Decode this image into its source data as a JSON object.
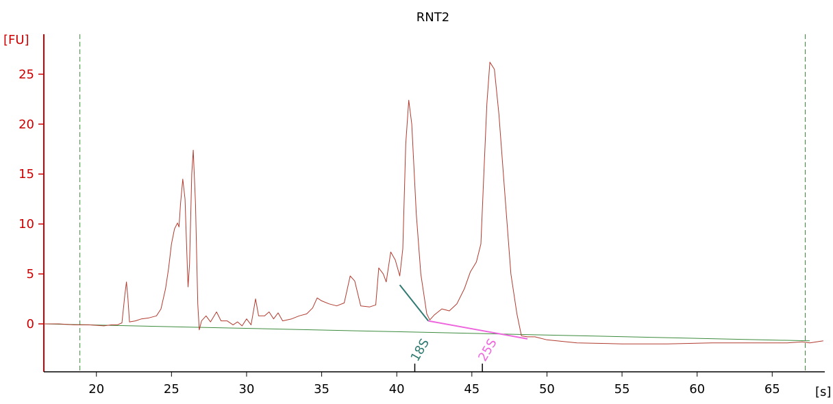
{
  "chart_data": {
    "type": "line",
    "title": "RNT2",
    "ylabel": "[FU]",
    "xlabel": "[s]",
    "xlim": [
      16.5,
      68.5
    ],
    "ylim": [
      -4.8,
      29
    ],
    "x_ticks": [
      20,
      25,
      30,
      35,
      40,
      45,
      50,
      55,
      60,
      65
    ],
    "y_ticks": [
      0,
      5,
      10,
      15,
      20,
      25
    ],
    "grid": false,
    "colors": {
      "trace": "#b03a2e",
      "baseline": "#3b8a3b",
      "axis": "#cc0000",
      "marker_18S": "#2f7a72",
      "marker_25S": "#ee66dd",
      "window": "#3b8a3b"
    },
    "window_lines": [
      18.9,
      67.2
    ],
    "baseline": [
      [
        16.5,
        0.0
      ],
      [
        67.5,
        -1.7
      ]
    ],
    "series": [
      {
        "values": [
          [
            16.5,
            0.0
          ],
          [
            17.5,
            0.0
          ],
          [
            18.5,
            -0.1
          ],
          [
            19.5,
            -0.1
          ],
          [
            20.5,
            -0.2
          ],
          [
            21.0,
            -0.1
          ],
          [
            21.4,
            -0.1
          ],
          [
            21.7,
            0.1
          ],
          [
            21.9,
            3.0
          ],
          [
            22.0,
            4.2
          ],
          [
            22.1,
            2.5
          ],
          [
            22.2,
            0.2
          ],
          [
            22.6,
            0.3
          ],
          [
            23.0,
            0.5
          ],
          [
            23.5,
            0.6
          ],
          [
            24.0,
            0.8
          ],
          [
            24.3,
            1.5
          ],
          [
            24.6,
            3.5
          ],
          [
            24.8,
            5.5
          ],
          [
            25.0,
            8.0
          ],
          [
            25.2,
            9.5
          ],
          [
            25.4,
            10.1
          ],
          [
            25.5,
            9.7
          ],
          [
            25.6,
            12.0
          ],
          [
            25.75,
            14.5
          ],
          [
            25.9,
            12.5
          ],
          [
            26.0,
            8.0
          ],
          [
            26.1,
            3.7
          ],
          [
            26.2,
            6.0
          ],
          [
            26.35,
            15.0
          ],
          [
            26.45,
            17.4
          ],
          [
            26.6,
            12.0
          ],
          [
            26.75,
            2.0
          ],
          [
            26.85,
            -0.6
          ],
          [
            27.0,
            0.3
          ],
          [
            27.3,
            0.8
          ],
          [
            27.6,
            0.2
          ],
          [
            28.0,
            1.2
          ],
          [
            28.3,
            0.3
          ],
          [
            28.7,
            0.3
          ],
          [
            29.1,
            -0.1
          ],
          [
            29.4,
            0.2
          ],
          [
            29.7,
            -0.2
          ],
          [
            30.0,
            0.5
          ],
          [
            30.3,
            -0.1
          ],
          [
            30.6,
            2.5
          ],
          [
            30.8,
            0.8
          ],
          [
            31.2,
            0.8
          ],
          [
            31.5,
            1.2
          ],
          [
            31.8,
            0.5
          ],
          [
            32.1,
            1.1
          ],
          [
            32.4,
            0.3
          ],
          [
            33.0,
            0.5
          ],
          [
            33.5,
            0.8
          ],
          [
            34.0,
            1.0
          ],
          [
            34.4,
            1.6
          ],
          [
            34.7,
            2.6
          ],
          [
            35.0,
            2.3
          ],
          [
            35.5,
            2.0
          ],
          [
            36.0,
            1.8
          ],
          [
            36.5,
            2.1
          ],
          [
            36.9,
            4.8
          ],
          [
            37.2,
            4.3
          ],
          [
            37.6,
            1.8
          ],
          [
            38.2,
            1.7
          ],
          [
            38.6,
            1.9
          ],
          [
            38.8,
            5.6
          ],
          [
            39.1,
            5.0
          ],
          [
            39.3,
            4.2
          ],
          [
            39.6,
            7.2
          ],
          [
            39.9,
            6.4
          ],
          [
            40.2,
            4.8
          ],
          [
            40.4,
            7.5
          ],
          [
            40.6,
            18.0
          ],
          [
            40.8,
            22.4
          ],
          [
            41.0,
            20.0
          ],
          [
            41.3,
            11.0
          ],
          [
            41.6,
            5.0
          ],
          [
            42.0,
            1.0
          ],
          [
            42.2,
            0.4
          ],
          [
            42.5,
            0.9
          ],
          [
            43.0,
            1.5
          ],
          [
            43.5,
            1.3
          ],
          [
            44.0,
            2.0
          ],
          [
            44.5,
            3.5
          ],
          [
            44.9,
            5.2
          ],
          [
            45.3,
            6.2
          ],
          [
            45.6,
            8.0
          ],
          [
            45.8,
            15.0
          ],
          [
            46.0,
            22.0
          ],
          [
            46.2,
            26.2
          ],
          [
            46.5,
            25.5
          ],
          [
            46.8,
            21.0
          ],
          [
            47.2,
            13.0
          ],
          [
            47.6,
            5.0
          ],
          [
            48.0,
            1.0
          ],
          [
            48.3,
            -1.2
          ],
          [
            48.7,
            -1.3
          ],
          [
            49.2,
            -1.3
          ],
          [
            50.0,
            -1.6
          ],
          [
            52.0,
            -1.9
          ],
          [
            55.0,
            -2.0
          ],
          [
            58.0,
            -2.0
          ],
          [
            61.0,
            -1.9
          ],
          [
            64.0,
            -1.9
          ],
          [
            66.0,
            -1.9
          ],
          [
            67.0,
            -1.8
          ],
          [
            67.5,
            -1.9
          ],
          [
            68.4,
            -1.7
          ]
        ]
      }
    ],
    "markers": [
      {
        "label": "18S",
        "x": 41.2,
        "start": [
          40.2,
          3.9
        ],
        "end": [
          42.1,
          0.3
        ]
      },
      {
        "label": "25S",
        "x": 45.7,
        "start": [
          42.1,
          0.3
        ],
        "end": [
          48.7,
          -1.5
        ]
      }
    ]
  }
}
